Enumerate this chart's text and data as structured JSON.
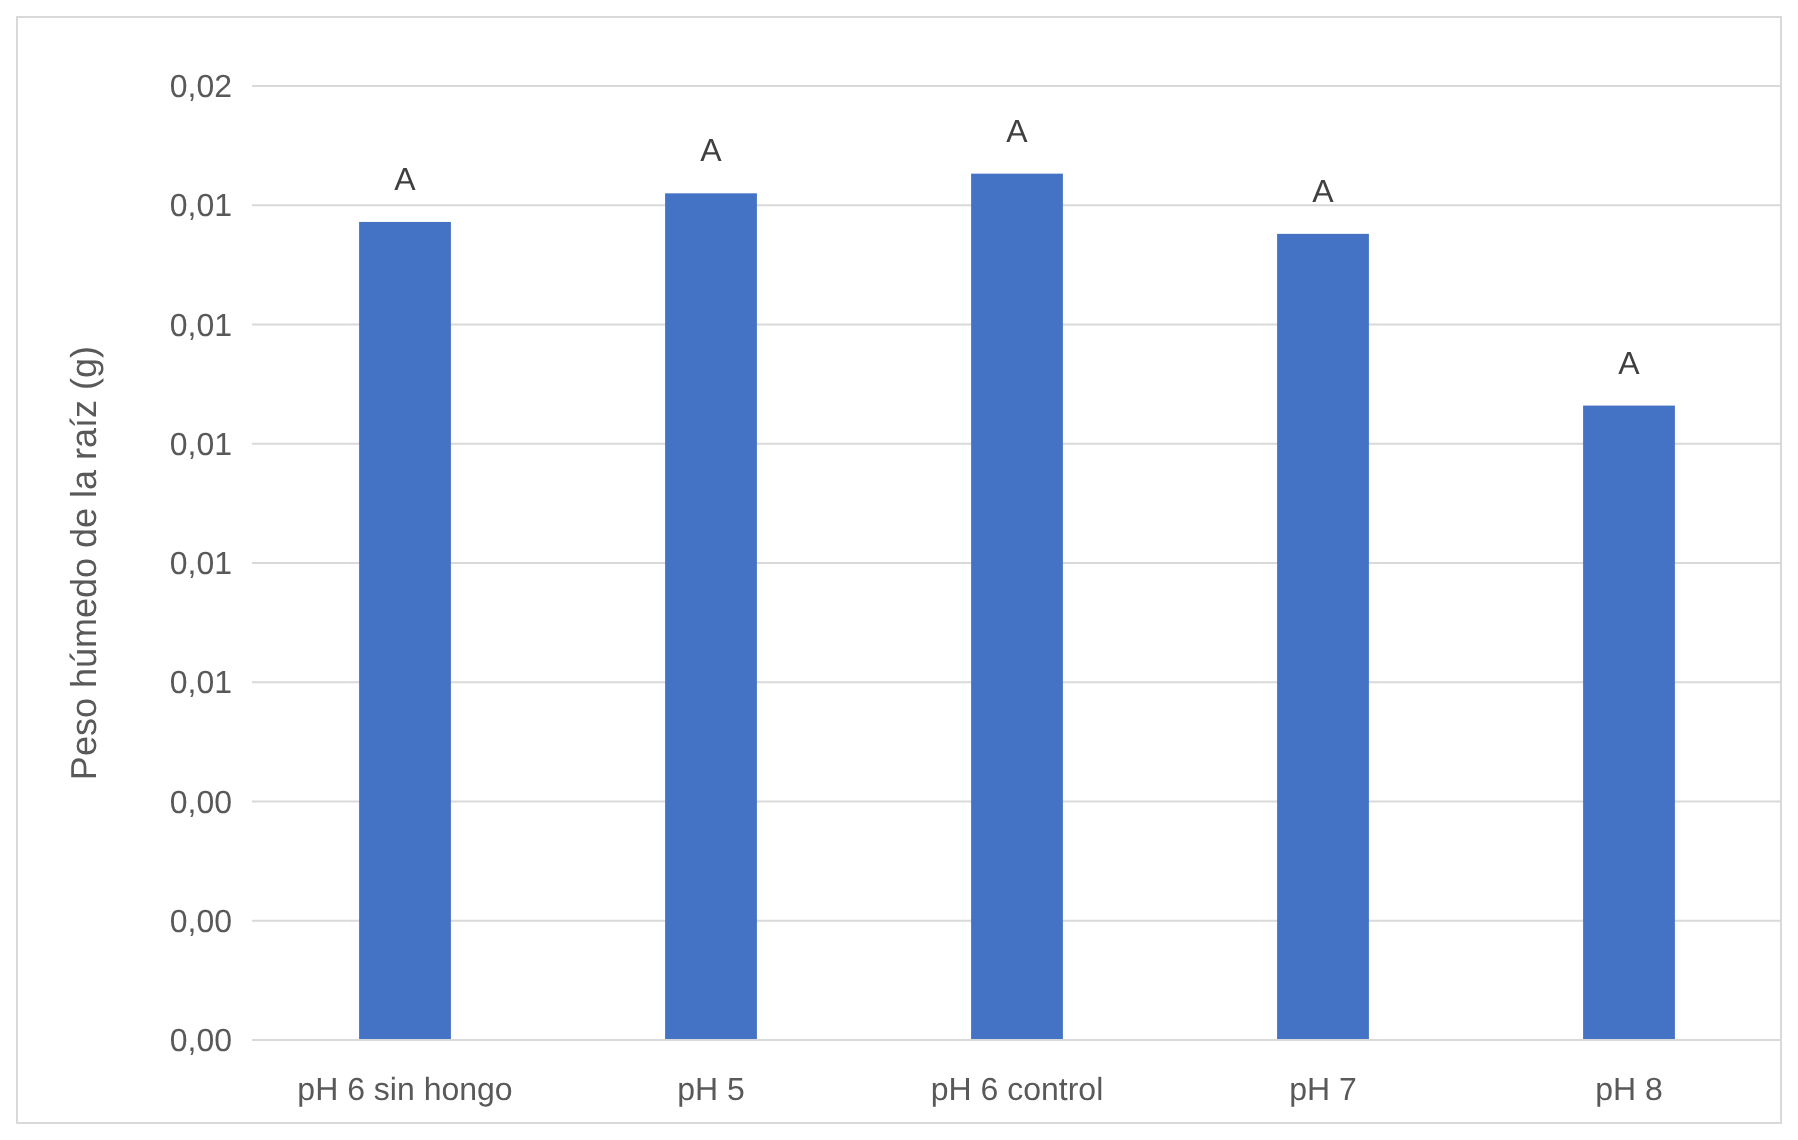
{
  "chart_data": {
    "type": "bar",
    "ylabel": "Peso húmedo de la raíz (g)",
    "categories": [
      "pH 6 sin hongo",
      "pH 5",
      "pH 6 control",
      "pH 7",
      "pH 8"
    ],
    "values": [
      0.01372,
      0.0142,
      0.01453,
      0.01352,
      0.01064
    ],
    "color": "#4472c4",
    "ylim": [
      0,
      0.016
    ],
    "yticks": [
      {
        "value": 0,
        "label": "0,00"
      },
      {
        "value": 0.002,
        "label": "0,00"
      },
      {
        "value": 0.004,
        "label": "0,00"
      },
      {
        "value": 0.006,
        "label": "0,01"
      },
      {
        "value": 0.008,
        "label": "0,01"
      },
      {
        "value": 0.01,
        "label": "0,01"
      },
      {
        "value": 0.012,
        "label": "0,01"
      },
      {
        "value": 0.014,
        "label": "0,01"
      },
      {
        "value": 0.016,
        "label": "0,02"
      }
    ],
    "grid": "y",
    "annotations": [
      {
        "text": "A",
        "x": "pH 6 sin hongo",
        "y": 0.01372
      },
      {
        "text": "A",
        "x": "pH 5",
        "y": 0.0142
      },
      {
        "text": "A",
        "x": "pH 6 control",
        "y": 0.01453
      },
      {
        "text": "A",
        "x": "pH 7",
        "y": 0.01352
      },
      {
        "text": "A",
        "x": "pH 8",
        "y": 0.01064
      }
    ]
  }
}
